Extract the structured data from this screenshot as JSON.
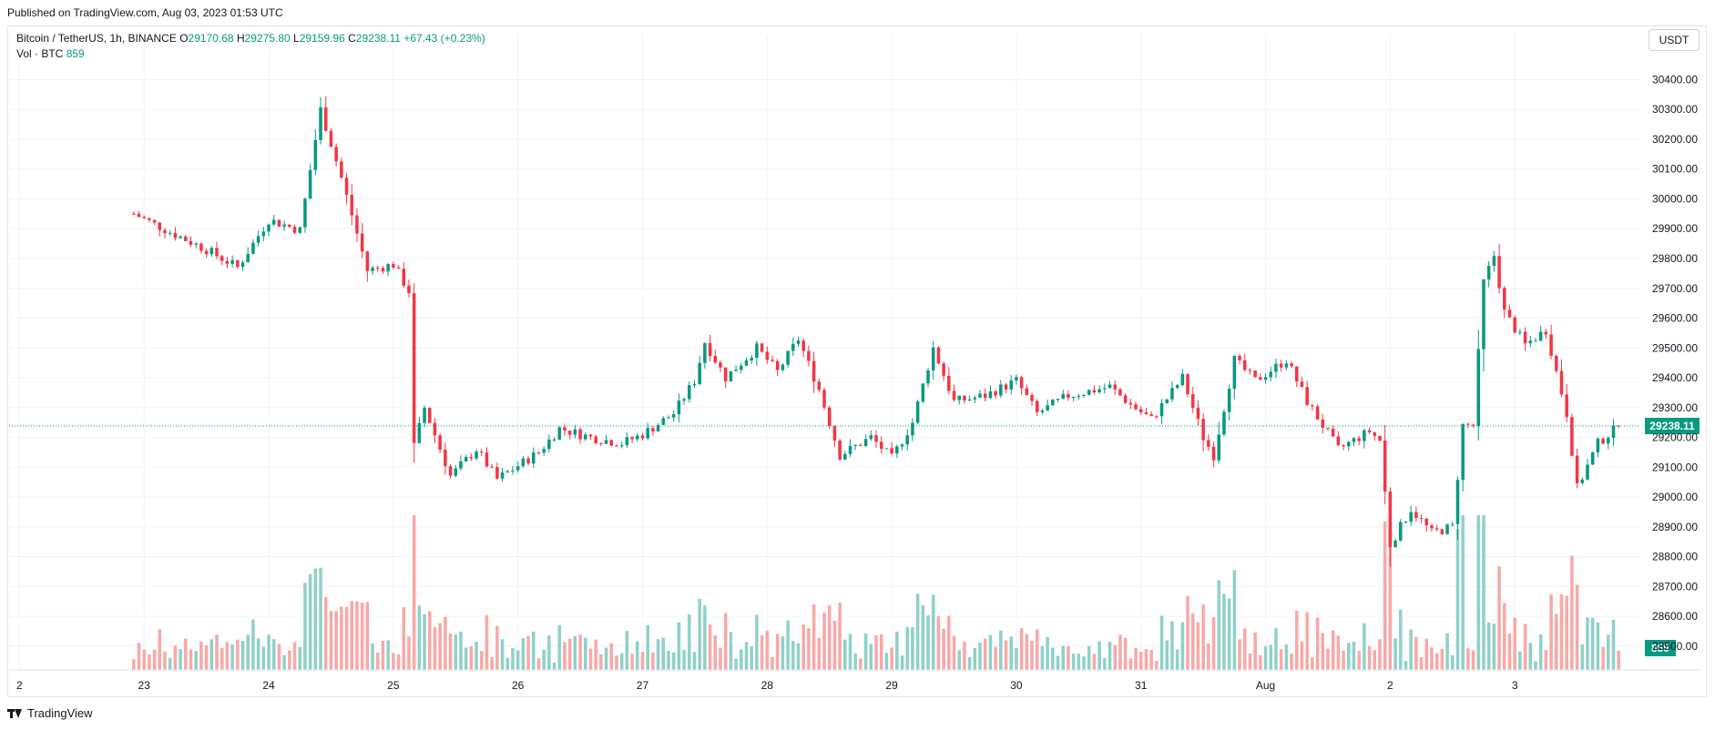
{
  "header": {
    "published": "Published on TradingView.com, Aug 03, 2023 01:53 UTC"
  },
  "legend": {
    "symbol": "Bitcoin / TetherUS, 1h, BINANCE",
    "open_label": "O",
    "open": "29170.68",
    "high_label": "H",
    "high": "29275.80",
    "low_label": "L",
    "low": "29159.96",
    "close_label": "C",
    "close": "29238.11",
    "change": "+67.43 (+0.23%)",
    "vol_label": "Vol · BTC",
    "vol": "859"
  },
  "currency_button": "USDT",
  "footer": {
    "brand": "TradingView"
  },
  "colors": {
    "up": "#089981",
    "down": "#f23645",
    "vol_up": "#8fd1c8",
    "vol_down": "#f7a9a7",
    "grid": "#f0f3fa",
    "axis_text": "#131722"
  },
  "chart_data": {
    "type": "candlestick",
    "ylim": [
      28420,
      30490
    ],
    "y_ticks": [
      28500,
      28600,
      28700,
      28800,
      28900,
      29000,
      29100,
      29200,
      29300,
      29400,
      29500,
      29600,
      29700,
      29800,
      29900,
      30000,
      30100,
      30200,
      30300,
      30400
    ],
    "y_tick_labels": [
      "28500.00",
      "28600.00",
      "28700.00",
      "28800.00",
      "28900.00",
      "29000.00",
      "29100.00",
      "29200.00",
      "29300.00",
      "29400.00",
      "29500.00",
      "29600.00",
      "29700.00",
      "29800.00",
      "29900.00",
      "30000.00",
      "30100.00",
      "30200.00",
      "30300.00",
      "30400.00"
    ],
    "x_ticks": [
      {
        "label": "2",
        "hour": -22
      },
      {
        "label": "23",
        "hour": 2
      },
      {
        "label": "24",
        "hour": 26
      },
      {
        "label": "25",
        "hour": 50
      },
      {
        "label": "26",
        "hour": 74
      },
      {
        "label": "27",
        "hour": 98
      },
      {
        "label": "28",
        "hour": 122
      },
      {
        "label": "29",
        "hour": 146
      },
      {
        "label": "30",
        "hour": 170
      },
      {
        "label": "31",
        "hour": 194
      },
      {
        "label": "Aug",
        "hour": 218
      },
      {
        "label": "2",
        "hour": 242
      },
      {
        "label": "3",
        "hour": 266
      }
    ],
    "price_series": [
      {
        "hour": 0,
        "close": 29950
      },
      {
        "hour": 8,
        "close": 29880
      },
      {
        "hour": 14,
        "close": 29830
      },
      {
        "hour": 20,
        "close": 29770
      },
      {
        "hour": 26,
        "close": 29930
      },
      {
        "hour": 32,
        "close": 29895
      },
      {
        "hour": 36,
        "close": 30300
      },
      {
        "hour": 40,
        "close": 30070
      },
      {
        "hour": 45,
        "close": 29760
      },
      {
        "hour": 50,
        "close": 29780
      },
      {
        "hour": 53,
        "close": 29690
      },
      {
        "hour": 54,
        "close": 29170
      },
      {
        "hour": 56,
        "close": 29300
      },
      {
        "hour": 61,
        "close": 29070
      },
      {
        "hour": 66,
        "close": 29160
      },
      {
        "hour": 70,
        "close": 29060
      },
      {
        "hour": 78,
        "close": 29150
      },
      {
        "hour": 82,
        "close": 29230
      },
      {
        "hour": 88,
        "close": 29200
      },
      {
        "hour": 94,
        "close": 29180
      },
      {
        "hour": 98,
        "close": 29210
      },
      {
        "hour": 104,
        "close": 29280
      },
      {
        "hour": 108,
        "close": 29390
      },
      {
        "hour": 110,
        "close": 29520
      },
      {
        "hour": 114,
        "close": 29400
      },
      {
        "hour": 120,
        "close": 29500
      },
      {
        "hour": 124,
        "close": 29420
      },
      {
        "hour": 128,
        "close": 29530
      },
      {
        "hour": 132,
        "close": 29360
      },
      {
        "hour": 136,
        "close": 29140
      },
      {
        "hour": 142,
        "close": 29200
      },
      {
        "hour": 146,
        "close": 29130
      },
      {
        "hour": 150,
        "close": 29250
      },
      {
        "hour": 154,
        "close": 29500
      },
      {
        "hour": 158,
        "close": 29320
      },
      {
        "hour": 164,
        "close": 29340
      },
      {
        "hour": 170,
        "close": 29390
      },
      {
        "hour": 174,
        "close": 29280
      },
      {
        "hour": 180,
        "close": 29340
      },
      {
        "hour": 188,
        "close": 29370
      },
      {
        "hour": 192,
        "close": 29310
      },
      {
        "hour": 196,
        "close": 29260
      },
      {
        "hour": 202,
        "close": 29400
      },
      {
        "hour": 206,
        "close": 29200
      },
      {
        "hour": 208,
        "close": 29140
      },
      {
        "hour": 212,
        "close": 29460
      },
      {
        "hour": 216,
        "close": 29390
      },
      {
        "hour": 222,
        "close": 29460
      },
      {
        "hour": 226,
        "close": 29320
      },
      {
        "hour": 232,
        "close": 29160
      },
      {
        "hour": 238,
        "close": 29220
      },
      {
        "hour": 240,
        "close": 29190
      },
      {
        "hour": 242,
        "close": 28840
      },
      {
        "hour": 246,
        "close": 28960
      },
      {
        "hour": 250,
        "close": 28880
      },
      {
        "hour": 254,
        "close": 28900
      },
      {
        "hour": 256,
        "close": 29240
      },
      {
        "hour": 258,
        "close": 29240
      },
      {
        "hour": 260,
        "close": 29720
      },
      {
        "hour": 262,
        "close": 29810
      },
      {
        "hour": 264,
        "close": 29620
      },
      {
        "hour": 268,
        "close": 29510
      },
      {
        "hour": 272,
        "close": 29560
      },
      {
        "hour": 276,
        "close": 29280
      },
      {
        "hour": 278,
        "close": 29030
      },
      {
        "hour": 282,
        "close": 29180
      },
      {
        "hour": 286,
        "close": 29238.11
      }
    ],
    "last_price": 29238.11,
    "last_price_label": "29238.11",
    "volume_label": "859"
  }
}
